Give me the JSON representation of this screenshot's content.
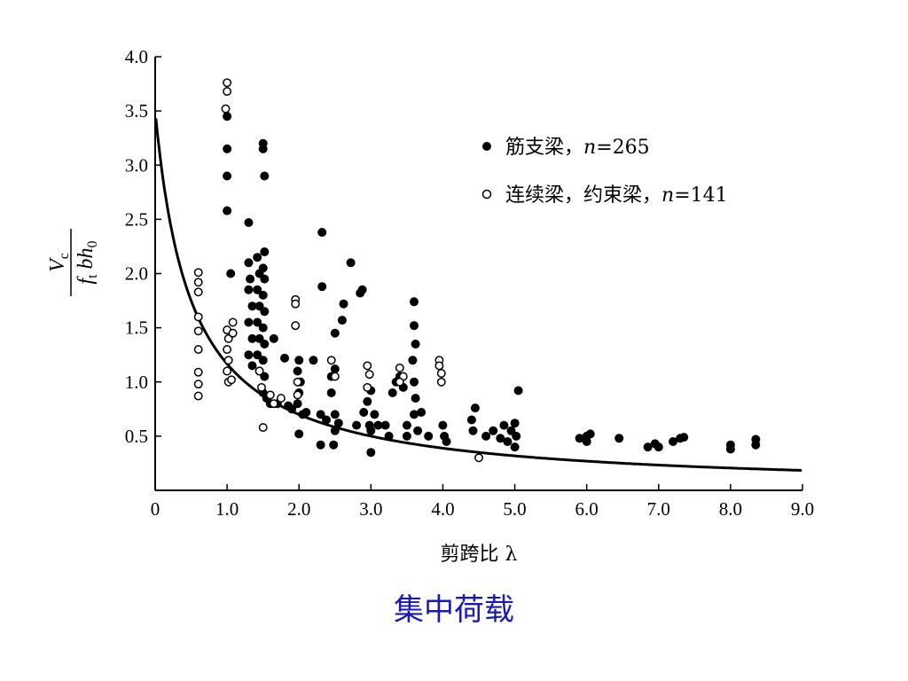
{
  "caption": "集中荷载",
  "chart_data": {
    "type": "scatter",
    "title": "",
    "xlabel": "剪跨比 λ",
    "ylabel": {
      "numerator": "V",
      "numerator_sub": "c",
      "denominator_f": "f",
      "denominator_sub": "t",
      "denominator_rest": "bh",
      "denominator_sub2": "0"
    },
    "xlim": [
      0,
      9
    ],
    "ylim": [
      0,
      4
    ],
    "xticks": [
      "0",
      "1.0",
      "2.0",
      "3.0",
      "4.0",
      "5.0",
      "6.0",
      "7.0",
      "8.0",
      "9.0"
    ],
    "yticks": [
      "0.5",
      "1.0",
      "1.5",
      "2.0",
      "2.5",
      "3.0",
      "3.5",
      "4.0"
    ],
    "legend_position": "top-right",
    "colors": {
      "axis": "#000000",
      "filled": "#000000",
      "caption": "#1a1ab0"
    },
    "series": [
      {
        "name": "筋支梁，n=265",
        "label_main": "筋支梁，",
        "label_n": "n",
        "label_eq": "=265",
        "marker": "filled",
        "points": [
          [
            1.0,
            3.45
          ],
          [
            1.0,
            3.15
          ],
          [
            1.0,
            2.9
          ],
          [
            1.0,
            2.58
          ],
          [
            1.05,
            2.0
          ],
          [
            1.3,
            2.47
          ],
          [
            1.3,
            2.1
          ],
          [
            1.32,
            1.95
          ],
          [
            1.3,
            1.85
          ],
          [
            1.35,
            1.7
          ],
          [
            1.3,
            1.55
          ],
          [
            1.35,
            1.4
          ],
          [
            1.3,
            1.25
          ],
          [
            1.35,
            1.15
          ],
          [
            1.42,
            2.15
          ],
          [
            1.45,
            2.0
          ],
          [
            1.42,
            1.85
          ],
          [
            1.45,
            1.7
          ],
          [
            1.42,
            1.55
          ],
          [
            1.45,
            1.4
          ],
          [
            1.42,
            1.25
          ],
          [
            1.45,
            1.1
          ],
          [
            1.5,
            3.2
          ],
          [
            1.5,
            3.15
          ],
          [
            1.52,
            2.9
          ],
          [
            1.52,
            2.2
          ],
          [
            1.5,
            2.05
          ],
          [
            1.52,
            1.95
          ],
          [
            1.5,
            1.8
          ],
          [
            1.52,
            1.65
          ],
          [
            1.5,
            1.5
          ],
          [
            1.52,
            1.35
          ],
          [
            1.5,
            1.2
          ],
          [
            1.52,
            1.05
          ],
          [
            1.5,
            0.9
          ],
          [
            1.55,
            0.85
          ],
          [
            1.6,
            0.8
          ],
          [
            1.65,
            1.4
          ],
          [
            1.7,
            0.8
          ],
          [
            1.8,
            1.22
          ],
          [
            1.85,
            0.78
          ],
          [
            1.9,
            0.75
          ],
          [
            2.0,
            1.2
          ],
          [
            1.98,
            1.1
          ],
          [
            2.02,
            1.0
          ],
          [
            2.0,
            0.9
          ],
          [
            1.98,
            0.8
          ],
          [
            2.05,
            0.7
          ],
          [
            2.1,
            0.72
          ],
          [
            2.0,
            0.52
          ],
          [
            2.2,
            1.2
          ],
          [
            2.3,
            0.7
          ],
          [
            2.32,
            2.38
          ],
          [
            2.32,
            1.88
          ],
          [
            2.3,
            0.42
          ],
          [
            2.38,
            0.65
          ],
          [
            2.45,
            0.9
          ],
          [
            2.45,
            1.05
          ],
          [
            2.5,
            1.12
          ],
          [
            2.5,
            0.7
          ],
          [
            2.5,
            0.55
          ],
          [
            2.48,
            0.42
          ],
          [
            2.55,
            0.62
          ],
          [
            2.6,
            1.57
          ],
          [
            2.62,
            1.72
          ],
          [
            2.5,
            1.45
          ],
          [
            2.72,
            2.1
          ],
          [
            2.85,
            1.82
          ],
          [
            2.88,
            1.85
          ],
          [
            2.8,
            0.6
          ],
          [
            2.9,
            0.72
          ],
          [
            2.95,
            0.82
          ],
          [
            3.0,
            0.92
          ],
          [
            2.98,
            0.6
          ],
          [
            3.0,
            0.55
          ],
          [
            3.05,
            0.7
          ],
          [
            3.1,
            0.6
          ],
          [
            3.2,
            0.6
          ],
          [
            3.25,
            0.5
          ],
          [
            3.0,
            0.35
          ],
          [
            3.3,
            0.9
          ],
          [
            3.35,
            1.0
          ],
          [
            3.4,
            1.05
          ],
          [
            3.45,
            0.95
          ],
          [
            3.5,
            0.6
          ],
          [
            3.5,
            0.5
          ],
          [
            3.6,
            1.74
          ],
          [
            3.6,
            1.52
          ],
          [
            3.62,
            1.35
          ],
          [
            3.58,
            1.2
          ],
          [
            3.6,
            1.0
          ],
          [
            3.62,
            0.85
          ],
          [
            3.6,
            0.7
          ],
          [
            3.65,
            0.55
          ],
          [
            3.7,
            0.72
          ],
          [
            3.8,
            0.5
          ],
          [
            4.0,
            0.6
          ],
          [
            4.02,
            0.5
          ],
          [
            4.05,
            0.45
          ],
          [
            4.4,
            0.65
          ],
          [
            4.42,
            0.55
          ],
          [
            4.45,
            0.76
          ],
          [
            4.6,
            0.5
          ],
          [
            4.7,
            0.55
          ],
          [
            4.8,
            0.48
          ],
          [
            4.85,
            0.6
          ],
          [
            4.9,
            0.45
          ],
          [
            4.95,
            0.55
          ],
          [
            5.0,
            0.62
          ],
          [
            5.02,
            0.5
          ],
          [
            5.05,
            0.92
          ],
          [
            5.0,
            0.4
          ],
          [
            5.9,
            0.48
          ],
          [
            6.0,
            0.5
          ],
          [
            6.0,
            0.45
          ],
          [
            6.05,
            0.52
          ],
          [
            6.45,
            0.48
          ],
          [
            6.85,
            0.4
          ],
          [
            6.95,
            0.43
          ],
          [
            7.0,
            0.4
          ],
          [
            7.2,
            0.45
          ],
          [
            7.3,
            0.48
          ],
          [
            7.35,
            0.49
          ],
          [
            8.0,
            0.42
          ],
          [
            8.0,
            0.38
          ],
          [
            8.35,
            0.47
          ],
          [
            8.35,
            0.42
          ]
        ]
      },
      {
        "name": "连续梁，约束梁，n=141",
        "label_main": "连续梁，约束梁，",
        "label_n": "n",
        "label_eq": "=141",
        "marker": "open",
        "points": [
          [
            1.0,
            3.76
          ],
          [
            1.0,
            3.68
          ],
          [
            0.98,
            3.52
          ],
          [
            0.6,
            2.01
          ],
          [
            0.6,
            1.92
          ],
          [
            0.6,
            1.83
          ],
          [
            0.6,
            1.6
          ],
          [
            0.6,
            1.47
          ],
          [
            0.6,
            1.3
          ],
          [
            0.6,
            1.09
          ],
          [
            0.6,
            0.98
          ],
          [
            0.6,
            0.87
          ],
          [
            1.0,
            1.48
          ],
          [
            1.02,
            1.4
          ],
          [
            1.0,
            1.3
          ],
          [
            1.02,
            1.2
          ],
          [
            1.0,
            1.1
          ],
          [
            1.02,
            1.0
          ],
          [
            1.08,
            1.55
          ],
          [
            1.08,
            1.45
          ],
          [
            1.06,
            1.02
          ],
          [
            1.45,
            1.1
          ],
          [
            1.48,
            0.95
          ],
          [
            1.5,
            0.58
          ],
          [
            1.6,
            0.88
          ],
          [
            1.65,
            0.8
          ],
          [
            1.75,
            0.85
          ],
          [
            1.95,
            1.76
          ],
          [
            1.95,
            1.72
          ],
          [
            1.95,
            1.52
          ],
          [
            1.98,
            1.0
          ],
          [
            1.98,
            0.88
          ],
          [
            2.45,
            1.2
          ],
          [
            2.5,
            1.05
          ],
          [
            2.95,
            1.15
          ],
          [
            2.98,
            1.07
          ],
          [
            2.95,
            0.95
          ],
          [
            3.4,
            1.13
          ],
          [
            3.45,
            1.05
          ],
          [
            3.4,
            1.0
          ],
          [
            3.95,
            1.2
          ],
          [
            3.95,
            1.15
          ],
          [
            3.98,
            1.08
          ],
          [
            3.98,
            1.0
          ],
          [
            4.5,
            0.3
          ]
        ]
      }
    ],
    "fit_curve": {
      "form": "y = a / (x + b)",
      "a": 1.75,
      "b": 0.5
    }
  }
}
